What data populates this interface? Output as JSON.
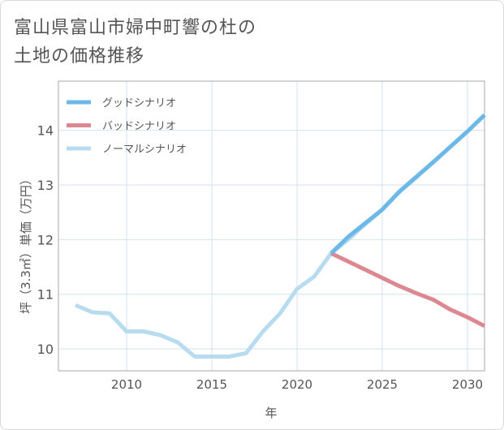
{
  "title_lines": [
    "富山県富山市婦中町響の杜の",
    "土地の価格推移"
  ],
  "chart_data": {
    "type": "line",
    "title": "富山県富山市婦中町響の杜の土地の価格推移",
    "xlabel": "年",
    "ylabel": "坪（3.3㎡）単価（万円）",
    "xlim": [
      2006,
      2031
    ],
    "ylim": [
      9.6,
      14.9
    ],
    "xticks": [
      2010,
      2015,
      2020,
      2025,
      2030
    ],
    "yticks": [
      10,
      11,
      12,
      13,
      14
    ],
    "legend_position": "top-left",
    "series": [
      {
        "name": "グッドシナリオ",
        "color": "#6cb8e8",
        "x": [
          2022,
          2023,
          2024,
          2025,
          2026,
          2027,
          2028,
          2029,
          2030,
          2031
        ],
        "values": [
          11.75,
          12.05,
          12.3,
          12.55,
          12.88,
          13.15,
          13.42,
          13.7,
          13.98,
          14.28
        ]
      },
      {
        "name": "バッドシナリオ",
        "color": "#dd8890",
        "x": [
          2022,
          2023,
          2024,
          2025,
          2026,
          2027,
          2028,
          2029,
          2030,
          2031
        ],
        "values": [
          11.75,
          11.6,
          11.45,
          11.3,
          11.15,
          11.02,
          10.9,
          10.72,
          10.58,
          10.42
        ]
      },
      {
        "name": "ノーマルシナリオ",
        "color": "#b8dcef",
        "x": [
          2007,
          2008,
          2009,
          2010,
          2011,
          2012,
          2013,
          2014,
          2015,
          2016,
          2017,
          2018,
          2019,
          2020,
          2021,
          2022,
          2023,
          2024,
          2025,
          2026,
          2027,
          2028,
          2029,
          2030,
          2031
        ],
        "values": [
          10.8,
          10.67,
          10.65,
          10.32,
          10.32,
          10.25,
          10.12,
          9.86,
          9.86,
          9.86,
          9.92,
          10.32,
          10.65,
          11.1,
          11.32,
          11.75,
          12.0,
          12.28,
          12.55,
          12.87,
          13.14,
          13.42,
          13.7,
          13.98,
          14.28
        ]
      }
    ]
  }
}
